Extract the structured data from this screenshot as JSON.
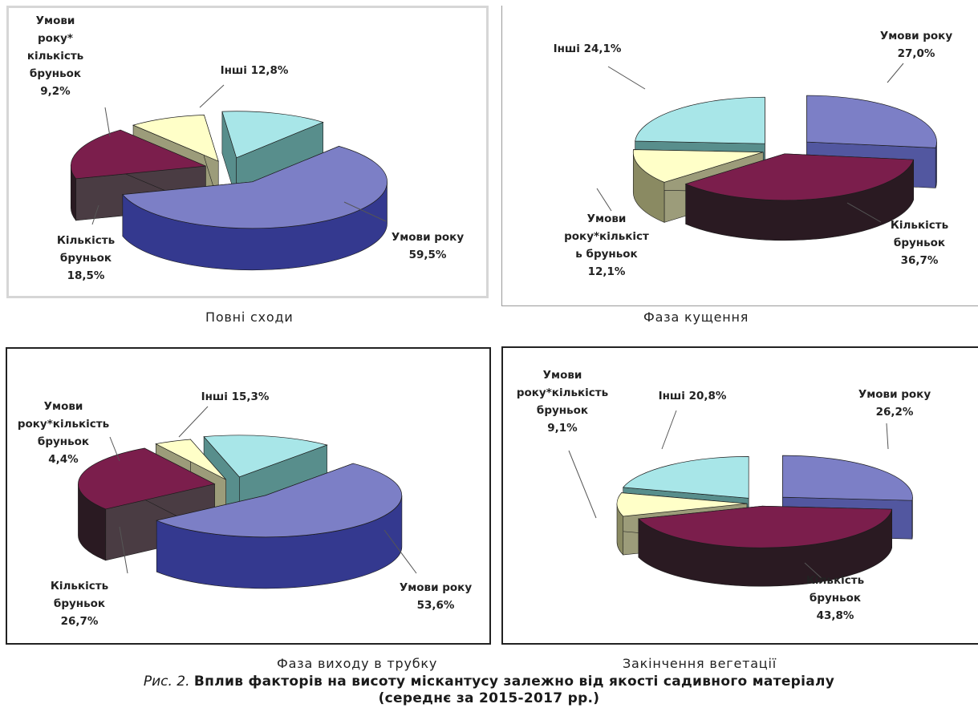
{
  "chart_data": [
    {
      "type": "pie",
      "title": "Повні сходи",
      "series": [
        {
          "values": [
            59.5,
            18.5,
            9.2,
            12.8
          ]
        }
      ],
      "labels": [
        [
          "Умови року",
          "59,5%"
        ],
        [
          "Кількість",
          "бруньок",
          "18,5%"
        ],
        [
          "Умови",
          "року*",
          "кількість",
          "бруньок",
          "9,2%"
        ],
        [
          "Інші 12,8%"
        ]
      ],
      "colors": [
        "#7c7fc6",
        "#7b1e4c",
        "#ffffc8",
        "#a8e6e8"
      ]
    },
    {
      "type": "pie",
      "title": "Фаза кущення",
      "series": [
        {
          "values": [
            27.0,
            36.7,
            12.1,
            24.1
          ]
        }
      ],
      "labels": [
        [
          "Умови року",
          "27,0%"
        ],
        [
          "Кількість",
          "бруньок",
          "36,7%"
        ],
        [
          "Умови",
          "року*кількіст",
          "ь бруньок",
          "12,1%"
        ],
        [
          "Інші 24,1%"
        ]
      ],
      "colors": [
        "#7c7fc6",
        "#7b1e4c",
        "#ffffc8",
        "#a8e6e8"
      ]
    },
    {
      "type": "pie",
      "title": "Фаза виходу в трубку",
      "series": [
        {
          "values": [
            53.6,
            26.7,
            4.4,
            15.3
          ]
        }
      ],
      "labels": [
        [
          "Умови року",
          "53,6%"
        ],
        [
          "Кількість",
          "бруньок",
          "26,7%"
        ],
        [
          "Умови",
          "року*кількість",
          "бруньок",
          "4,4%"
        ],
        [
          "Інші 15,3%"
        ]
      ],
      "colors": [
        "#7c7fc6",
        "#7b1e4c",
        "#ffffc8",
        "#a8e6e8"
      ]
    },
    {
      "type": "pie",
      "title": "Закінчення вегетації",
      "series": [
        {
          "values": [
            26.2,
            43.8,
            9.1,
            20.8
          ]
        }
      ],
      "labels": [
        [
          "Умови року",
          "26,2%"
        ],
        [
          "Кількість",
          "бруньок",
          "43,8%"
        ],
        [
          "Умови",
          "року*кількість",
          "бруньок",
          "9,1%"
        ],
        [
          "Інші 20,8%"
        ]
      ],
      "colors": [
        "#7c7fc6",
        "#7b1e4c",
        "#ffffc8",
        "#a8e6e8"
      ]
    }
  ],
  "figure": {
    "prefix": "Рис. 2.",
    "title": "Вплив факторів на висоту міскантусу залежно від якості садивного матеріалу",
    "subtitle": "(середнє за 2015-2017 рр.)"
  }
}
